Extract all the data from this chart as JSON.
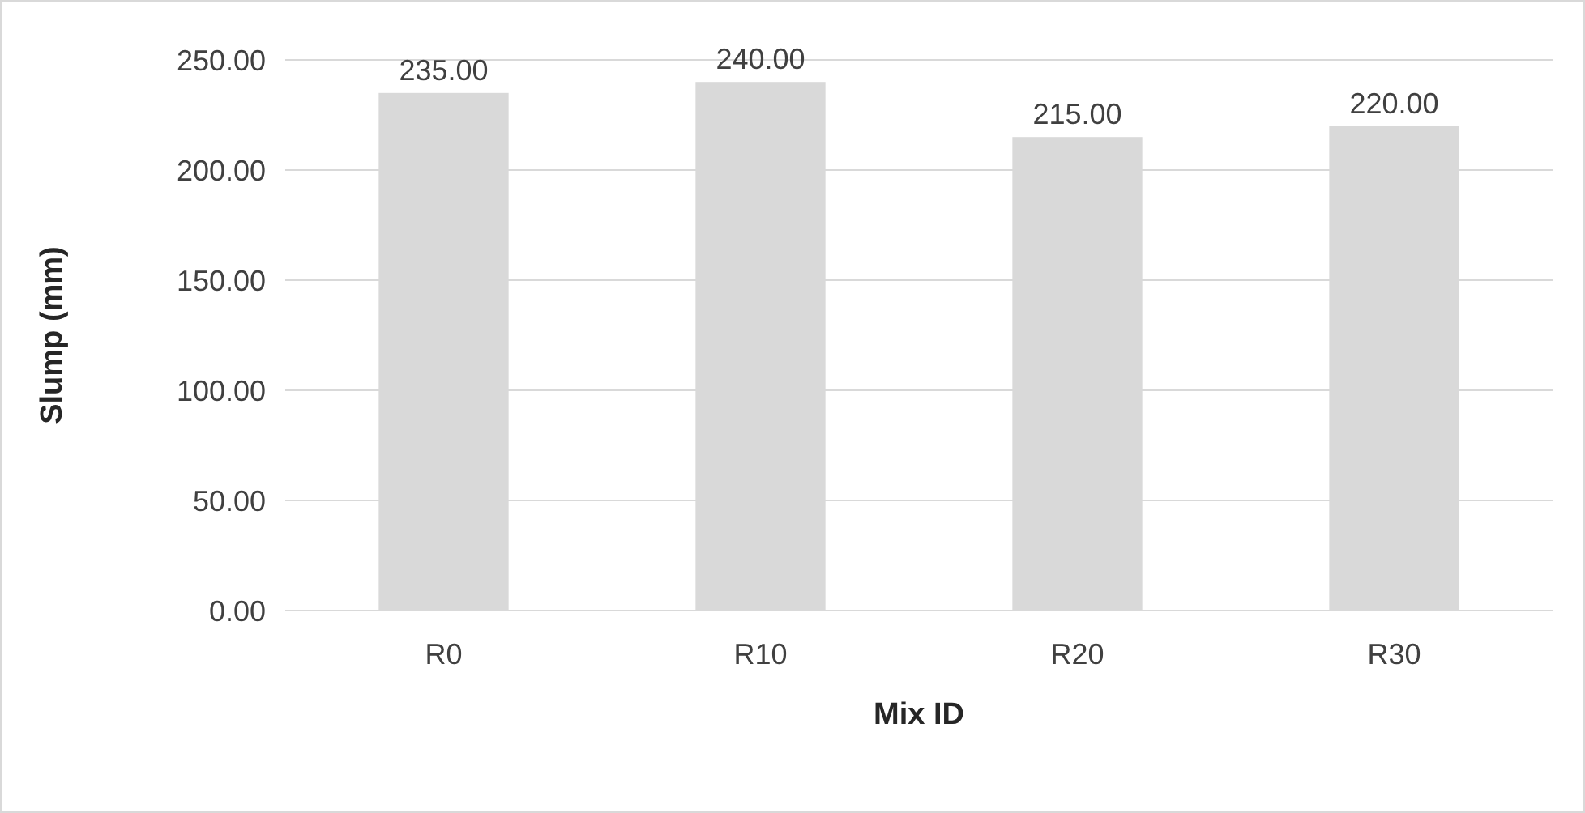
{
  "chart_data": {
    "type": "bar",
    "xlabel": "Mix ID",
    "ylabel": "Slump (mm)",
    "categories": [
      "R0",
      "R10",
      "R20",
      "R30"
    ],
    "values": [
      235,
      240,
      215,
      220
    ],
    "color": "#d9d9d9",
    "value_labels": [
      "235.00",
      "240.00",
      "215.00",
      "220.00"
    ],
    "ylim": [
      0,
      250
    ],
    "yticks": [
      {
        "value": 0,
        "label": "0.00"
      },
      {
        "value": 50,
        "label": "50.00"
      },
      {
        "value": 100,
        "label": "100.00"
      },
      {
        "value": 150,
        "label": "150.00"
      },
      {
        "value": 200,
        "label": "200.00"
      },
      {
        "value": 250,
        "label": "250.00"
      }
    ],
    "grid": "y"
  }
}
